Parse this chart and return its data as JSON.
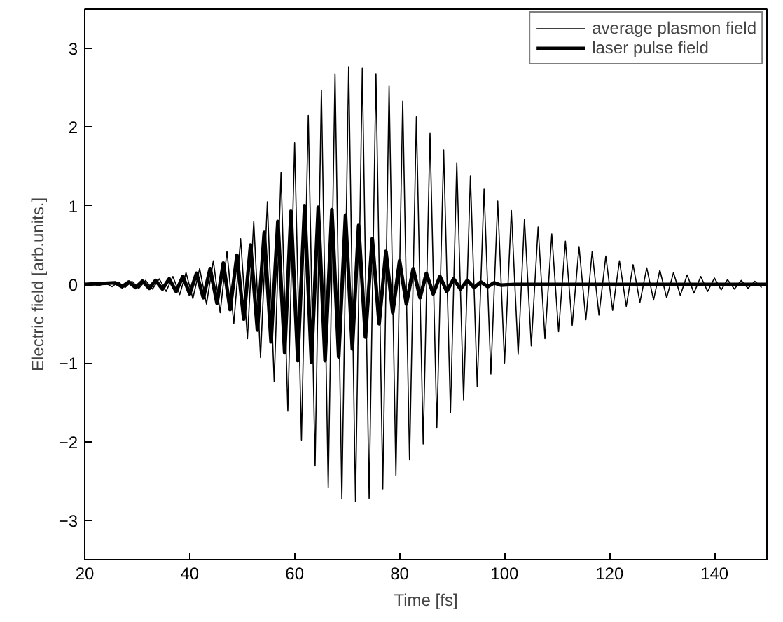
{
  "chart_data": {
    "type": "line",
    "xlabel": "Time [fs]",
    "ylabel": "Electric field [arb.units.]",
    "xlim": [
      20,
      150
    ],
    "ylim": [
      -3.5,
      3.5
    ],
    "xticks": [
      20,
      40,
      60,
      80,
      100,
      120,
      140
    ],
    "yticks": [
      -3,
      -2,
      -1,
      0,
      1,
      2,
      3
    ],
    "grid": false,
    "legend": "top right",
    "line_style": "solid",
    "marker": "none",
    "series": [
      {
        "name": "average plasmon field",
        "color": "#000000",
        "x": [
          20,
          21.3,
          22.6,
          23.9,
          25.2,
          26.4,
          27.7,
          29.0,
          30.3,
          31.6,
          32.9,
          34.2,
          35.5,
          36.8,
          38.1,
          39.3,
          40.6,
          41.9,
          43.2,
          44.5,
          45.8,
          47.1,
          48.4,
          49.7,
          51.0,
          52.2,
          53.5,
          54.8,
          56.1,
          57.4,
          58.7,
          60.0,
          61.3,
          62.6,
          63.9,
          65.1,
          66.4,
          67.7,
          69.0,
          70.3,
          71.6,
          72.9,
          74.2,
          75.5,
          76.8,
          78.0,
          79.3,
          80.6,
          81.9,
          83.2,
          84.5,
          85.8,
          87.1,
          88.4,
          89.7,
          90.9,
          92.2,
          93.5,
          94.8,
          96.1,
          97.4,
          98.7,
          100.0,
          101.3,
          102.6,
          103.8,
          105.1,
          106.4,
          107.7,
          109.0,
          110.3,
          111.6,
          112.9,
          114.2,
          115.5,
          116.7,
          118.0,
          119.3,
          120.6,
          121.9,
          123.2,
          124.5,
          125.8,
          127.1,
          128.4,
          129.6,
          130.9,
          132.2,
          133.5,
          134.8,
          136.1,
          137.4,
          138.7,
          140.0,
          141.3,
          142.5,
          143.8,
          145.1,
          146.4,
          147.7,
          149.0
        ],
        "values": [
          0,
          0.02,
          -0.02,
          0.02,
          -0.03,
          0.03,
          -0.04,
          0.04,
          -0.05,
          0.05,
          -0.06,
          0.07,
          -0.09,
          0.1,
          -0.13,
          0.15,
          -0.18,
          0.2,
          -0.25,
          0.3,
          -0.36,
          0.42,
          -0.5,
          0.58,
          -0.69,
          0.8,
          -0.93,
          1.05,
          -1.24,
          1.42,
          -1.61,
          1.8,
          -1.98,
          2.15,
          -2.31,
          2.47,
          -2.58,
          2.68,
          -2.73,
          2.77,
          -2.76,
          2.75,
          -2.72,
          2.68,
          -2.6,
          2.52,
          -2.43,
          2.33,
          -2.23,
          2.13,
          -2.03,
          1.92,
          -1.82,
          1.71,
          -1.63,
          1.55,
          -1.47,
          1.38,
          -1.3,
          1.21,
          -1.14,
          1.06,
          -1.0,
          0.94,
          -0.89,
          0.83,
          -0.78,
          0.73,
          -0.69,
          0.64,
          -0.6,
          0.55,
          -0.52,
          0.48,
          -0.45,
          0.42,
          -0.39,
          0.36,
          -0.33,
          0.3,
          -0.28,
          0.25,
          -0.23,
          0.21,
          -0.2,
          0.18,
          -0.17,
          0.15,
          -0.14,
          0.12,
          -0.11,
          0.1,
          -0.09,
          0.08,
          -0.07,
          0.06,
          -0.06,
          0.05,
          -0.05,
          0.04,
          -0.04
        ]
      },
      {
        "name": "laser pulse field",
        "color": "#000000",
        "x": [
          20,
          25.8,
          27.1,
          28.4,
          29.7,
          31.0,
          32.3,
          33.5,
          34.8,
          36.1,
          37.4,
          38.7,
          40.0,
          41.3,
          42.6,
          43.9,
          45.2,
          46.4,
          47.7,
          49.0,
          50.3,
          51.6,
          52.9,
          54.2,
          55.5,
          56.8,
          58.1,
          59.3,
          60.6,
          61.9,
          63.2,
          64.5,
          65.8,
          67.1,
          68.4,
          69.7,
          71.0,
          72.2,
          73.5,
          74.8,
          76.1,
          77.4,
          78.7,
          80.0,
          81.3,
          82.6,
          83.9,
          85.1,
          86.4,
          87.7,
          89.0,
          90.3,
          91.6,
          92.9,
          94.2,
          95.5,
          96.8,
          98.0,
          99.3,
          102,
          150
        ],
        "values": [
          0,
          0.02,
          -0.03,
          0.03,
          -0.04,
          0.04,
          -0.05,
          0.05,
          -0.06,
          0.07,
          -0.09,
          0.1,
          -0.12,
          0.14,
          -0.17,
          0.2,
          -0.24,
          0.27,
          -0.32,
          0.37,
          -0.44,
          0.5,
          -0.58,
          0.66,
          -0.73,
          0.8,
          -0.87,
          0.93,
          -0.97,
          1.0,
          -0.99,
          0.98,
          -0.97,
          0.95,
          -0.92,
          0.88,
          -0.82,
          0.75,
          -0.67,
          0.58,
          -0.5,
          0.42,
          -0.36,
          0.3,
          -0.25,
          0.2,
          -0.17,
          0.14,
          -0.12,
          0.1,
          -0.09,
          0.07,
          -0.06,
          0.05,
          -0.04,
          0.03,
          -0.03,
          0.02,
          -0.01,
          0,
          0
        ]
      }
    ]
  }
}
